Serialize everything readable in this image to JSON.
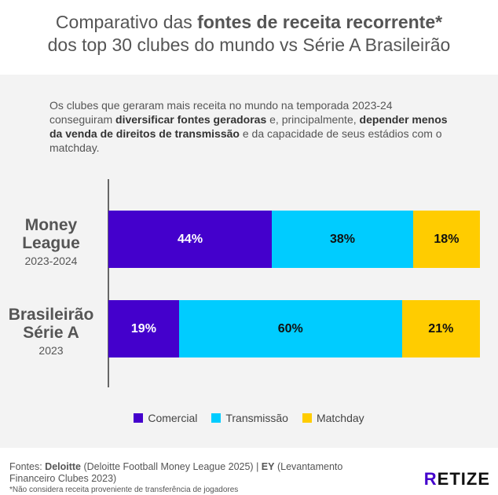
{
  "title": {
    "line1_pre": "Comparativo das ",
    "line1_bold": "fontes de receita recorrente*",
    "line2": "dos top 30 clubes do mundo vs Série A Brasileirão"
  },
  "intro": {
    "t1": "Os clubes que geraram mais receita no mundo na temporada 2023-24 conseguiram ",
    "b1": "diversificar fontes geradoras",
    "t2": " e, principalmente, ",
    "b2": "depender menos da venda de direitos de transmissão",
    "t3": " e da capacidade de seus estádios com o matchday."
  },
  "chart_data": {
    "type": "bar",
    "stacked": true,
    "orientation": "horizontal",
    "xlim": [
      0,
      100
    ],
    "categories": [
      {
        "main": "Money League",
        "sub": "2023-2024"
      },
      {
        "main": "Brasileirão Série A",
        "sub": "2023"
      }
    ],
    "series": [
      {
        "name": "Comercial",
        "color": "#4400cc",
        "values": [
          44,
          19
        ],
        "labels": [
          "44%",
          "19%"
        ],
        "text_color": "#ffffff"
      },
      {
        "name": "Transmissão",
        "color": "#00ccff",
        "values": [
          38,
          60
        ],
        "labels": [
          "38%",
          "60%"
        ],
        "text_color": "#111111"
      },
      {
        "name": "Matchday",
        "color": "#ffcc00",
        "values": [
          18,
          21
        ],
        "labels": [
          "18%",
          "21%"
        ],
        "text_color": "#111111"
      }
    ],
    "legend": "bottom-center"
  },
  "footer": {
    "pre": "Fontes: ",
    "deloitte": "Deloitte",
    "deloitte_src": " (Deloitte Football Money League 2025) | ",
    "ey": "EY",
    "ey_src": " (Levantamento Financeiro Clubes 2023)",
    "note": "*Não considera receita proveniente de transferência de jogadores"
  },
  "logo": {
    "first": "R",
    "rest": "ETIZE"
  }
}
